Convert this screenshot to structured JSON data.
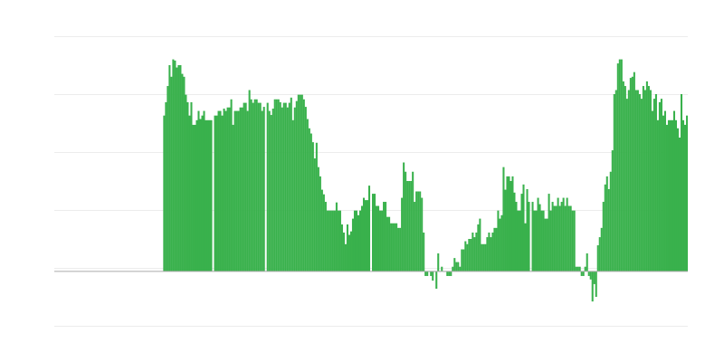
{
  "chart_data": {
    "type": "bar",
    "title": "",
    "xlabel": "",
    "ylabel": "",
    "ylim": [
      -0.94,
      4.06
    ],
    "grid": true,
    "bar_color": "#39b14c",
    "baseline_color": "#aaaaaa",
    "grid_color": "#ececec",
    "values": [
      null,
      null,
      null,
      null,
      null,
      null,
      null,
      null,
      null,
      null,
      null,
      null,
      null,
      null,
      null,
      null,
      null,
      null,
      null,
      null,
      null,
      null,
      null,
      null,
      null,
      null,
      null,
      null,
      null,
      null,
      null,
      null,
      null,
      null,
      null,
      null,
      null,
      null,
      null,
      null,
      null,
      null,
      null,
      null,
      null,
      null,
      null,
      null,
      null,
      null,
      null,
      null,
      null,
      null,
      null,
      null,
      null,
      null,
      null,
      null,
      2.69,
      2.92,
      3.2,
      3.56,
      3.36,
      3.66,
      3.64,
      3.52,
      3.56,
      3.56,
      3.41,
      3.36,
      3.05,
      2.92,
      2.69,
      2.92,
      2.53,
      2.53,
      2.61,
      2.77,
      2.63,
      2.69,
      2.77,
      2.61,
      2.61,
      2.61,
      2.61,
      null,
      2.69,
      2.69,
      2.77,
      2.77,
      2.69,
      2.81,
      2.77,
      2.83,
      2.83,
      2.97,
      2.53,
      2.77,
      2.77,
      2.77,
      2.83,
      2.83,
      2.91,
      2.91,
      2.77,
      3.13,
      2.97,
      2.91,
      2.97,
      2.97,
      2.91,
      2.91,
      2.77,
      2.84,
      null,
      2.91,
      2.77,
      2.7,
      2.81,
      2.97,
      2.97,
      2.97,
      2.92,
      2.83,
      2.91,
      2.91,
      2.83,
      2.91,
      3.0,
      2.61,
      2.83,
      2.94,
      3.05,
      3.05,
      3.05,
      2.97,
      2.84,
      2.63,
      2.47,
      2.38,
      2.23,
      1.95,
      2.22,
      1.8,
      1.64,
      1.41,
      1.33,
      1.2,
      1.05,
      1.05,
      1.05,
      1.05,
      1.05,
      1.19,
      1.05,
      1.05,
      0.81,
      0.67,
      0.47,
      0.81,
      0.63,
      0.69,
      0.91,
      1.05,
      1.05,
      0.97,
      1.05,
      1.13,
      1.27,
      1.23,
      1.23,
      1.48,
      null,
      1.34,
      1.34,
      1.13,
      1.13,
      1.05,
      1.05,
      1.2,
      1.2,
      0.94,
      0.94,
      0.83,
      0.83,
      0.83,
      0.83,
      0.75,
      0.75,
      1.27,
      1.88,
      1.72,
      1.56,
      1.56,
      1.56,
      1.72,
      1.2,
      1.38,
      1.38,
      1.38,
      1.27,
      0.67,
      -0.08,
      -0.08,
      0,
      -0.08,
      -0.16,
      0,
      -0.3,
      0.31,
      0,
      0.08,
      0,
      0,
      -0.08,
      -0.08,
      -0.08,
      0.08,
      0.23,
      0.16,
      0.16,
      0.08,
      0.38,
      0.38,
      0.52,
      0.47,
      0.56,
      0.56,
      0.67,
      0.59,
      0.67,
      0.81,
      0.91,
      0.47,
      0.47,
      0.47,
      0.59,
      0.67,
      0.59,
      0.67,
      0.75,
      0.75,
      1.05,
      0.91,
      0.97,
      1.8,
      1.41,
      1.64,
      1.64,
      1.56,
      1.64,
      1.36,
      1.2,
      1.05,
      1.05,
      1.34,
      1.5,
      0.83,
      1.42,
      1.2,
      null,
      1.2,
      1.05,
      1.05,
      1.27,
      1.16,
      1.05,
      1.05,
      0.91,
      0.91,
      1.34,
      1.05,
      1.2,
      1.13,
      1.13,
      1.27,
      1.13,
      1.2,
      1.27,
      1.13,
      1.27,
      1.13,
      1.13,
      1.05,
      1.05,
      0.08,
      0.08,
      0.08,
      -0.08,
      -0.08,
      0.08,
      0.31,
      -0.08,
      -0.14,
      -0.52,
      -0.22,
      -0.44,
      0.45,
      0.59,
      0.75,
      1.2,
      1.5,
      1.64,
      1.42,
      1.72,
      2.09,
      3.06,
      3.13,
      3.59,
      3.66,
      3.66,
      3.28,
      3.2,
      2.98,
      3.13,
      3.34,
      3.36,
      3.44,
      3.13,
      3.13,
      3.06,
      2.98,
      3.2,
      3.13,
      3.28,
      3.2,
      3.13,
      2.77,
      2.98,
      3.06,
      2.61,
      2.92,
      2.98,
      2.69,
      2.77,
      2.53,
      2.61,
      2.61,
      2.61,
      2.77,
      2.61,
      2.47,
      2.31,
      3.06,
      2.61,
      2.53,
      2.69
    ]
  }
}
